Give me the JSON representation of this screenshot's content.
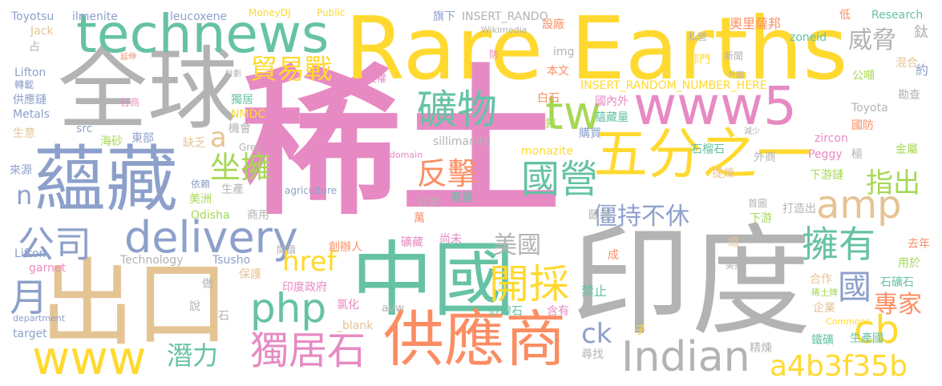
{
  "colors": {
    "pink": "#e78ac3",
    "gray": "#b3b3b3",
    "blue": "#8da0cb",
    "green": "#a6d854",
    "yellow": "#ffd92f",
    "orange": "#fc8d62",
    "tan": "#e5c494",
    "teal": "#66c2a5"
  },
  "words": [
    {
      "t": "稀土",
      "c": "pink"
    },
    {
      "t": "印度",
      "c": "gray"
    },
    {
      "t": "Rare Earths",
      "c": "yellow"
    },
    {
      "t": "全球",
      "c": "gray"
    },
    {
      "t": "中國",
      "c": "teal"
    },
    {
      "t": "出口",
      "c": "tan"
    },
    {
      "t": "蘊藏",
      "c": "blue"
    },
    {
      "t": "technews",
      "c": "teal"
    },
    {
      "t": "www5",
      "c": "pink"
    },
    {
      "t": "五分之一",
      "c": "yellow"
    },
    {
      "t": "供應商",
      "c": "orange"
    },
    {
      "t": "www",
      "c": "yellow"
    },
    {
      "t": "delivery",
      "c": "blue"
    },
    {
      "t": "Indian",
      "c": "gray"
    },
    {
      "t": "tw",
      "c": "green"
    },
    {
      "t": "礦物",
      "c": "teal"
    },
    {
      "t": "php",
      "c": "teal"
    },
    {
      "t": "國營",
      "c": "teal"
    },
    {
      "t": "開採",
      "c": "yellow"
    },
    {
      "t": "公司",
      "c": "blue"
    },
    {
      "t": "amp",
      "c": "tan"
    },
    {
      "t": "擁有",
      "c": "teal"
    },
    {
      "t": "獨居石",
      "c": "pink"
    },
    {
      "t": "cb",
      "c": "yellow"
    },
    {
      "t": "a4b3f35b",
      "c": "yellow"
    },
    {
      "t": "貿易戰",
      "c": "yellow"
    },
    {
      "t": "威脅",
      "c": "gray"
    },
    {
      "t": "坐擁",
      "c": "green"
    },
    {
      "t": "反擊",
      "c": "orange"
    },
    {
      "t": "指出",
      "c": "green"
    },
    {
      "t": "僵持不休",
      "c": "blue"
    },
    {
      "t": "美國",
      "c": "gray"
    },
    {
      "t": "href",
      "c": "yellow"
    },
    {
      "t": "月",
      "c": "blue"
    },
    {
      "t": "國",
      "c": "blue"
    },
    {
      "t": "專家",
      "c": "orange"
    },
    {
      "t": "潛力",
      "c": "teal"
    },
    {
      "t": "ck",
      "c": "blue"
    },
    {
      "t": "a",
      "c": "tan"
    },
    {
      "t": "n",
      "c": "blue"
    },
    {
      "t": "Toyotsu",
      "c": "blue"
    },
    {
      "t": "ilmenite",
      "c": "blue"
    },
    {
      "t": "leucoxene",
      "c": "blue"
    },
    {
      "t": "MoneyDJ",
      "c": "yellow"
    },
    {
      "t": "Public",
      "c": "yellow"
    },
    {
      "t": "旗下",
      "c": "blue"
    },
    {
      "t": "INSERT_RANDO",
      "c": "gray"
    },
    {
      "t": "Research",
      "c": "teal"
    },
    {
      "t": "Jack",
      "c": "tan"
    },
    {
      "t": "Wikimedia",
      "c": "gray"
    },
    {
      "t": "設廠",
      "c": "orange"
    },
    {
      "t": "奧里薩邦",
      "c": "orange"
    },
    {
      "t": "低",
      "c": "orange"
    },
    {
      "t": "zoneid",
      "c": "teal"
    },
    {
      "t": "鈦",
      "c": "gray"
    },
    {
      "t": "占",
      "c": "gray"
    },
    {
      "t": "延伸",
      "c": "orange"
    },
    {
      "t": "img",
      "c": "gray"
    },
    {
      "t": "防",
      "c": "pink"
    },
    {
      "t": "私營",
      "c": "gray"
    },
    {
      "t": "部門",
      "c": "yellow"
    },
    {
      "t": "新聞",
      "c": "gray"
    },
    {
      "t": "混合",
      "c": "tan"
    },
    {
      "t": "約",
      "c": "blue"
    },
    {
      "t": "Lifton",
      "c": "blue"
    },
    {
      "t": "計劃",
      "c": "gray"
    },
    {
      "t": "授權",
      "c": "pink"
    },
    {
      "t": "本文",
      "c": "orange"
    },
    {
      "t": "外國",
      "c": "gray"
    },
    {
      "t": "公噸",
      "c": "green"
    },
    {
      "t": "轉載",
      "c": "blue"
    },
    {
      "t": "INSERT_RANDOM_NUMBER_HERE",
      "c": "yellow"
    },
    {
      "t": "勘查",
      "c": "gray"
    },
    {
      "t": "供應鏈",
      "c": "blue"
    },
    {
      "t": "獨居",
      "c": "teal"
    },
    {
      "t": "白石",
      "c": "orange"
    },
    {
      "t": "國內外",
      "c": "pink"
    },
    {
      "t": "Toyota",
      "c": "gray"
    },
    {
      "t": "日商",
      "c": "pink"
    },
    {
      "t": "Metals",
      "c": "blue"
    },
    {
      "t": "NMDC",
      "c": "yellow"
    },
    {
      "t": "鍺",
      "c": "green"
    },
    {
      "t": "蘊藏量",
      "c": "teal"
    },
    {
      "t": "國防",
      "c": "orange"
    },
    {
      "t": "生意",
      "c": "tan"
    },
    {
      "t": "src",
      "c": "blue"
    },
    {
      "t": "機會",
      "c": "gray"
    },
    {
      "t": "購買",
      "c": "blue"
    },
    {
      "t": "減少",
      "c": "gray"
    },
    {
      "t": "海砂",
      "c": "green"
    },
    {
      "t": "東部",
      "c": "blue"
    },
    {
      "t": "缺乏",
      "c": "tan"
    },
    {
      "t": "sillimanite",
      "c": "gray"
    },
    {
      "t": "zircon",
      "c": "pink"
    },
    {
      "t": "外商",
      "c": "gray"
    },
    {
      "t": "來源",
      "c": "blue"
    },
    {
      "t": "Greb",
      "c": "gray"
    },
    {
      "t": "monazite",
      "c": "yellow"
    },
    {
      "t": "石榴石",
      "c": "teal"
    },
    {
      "t": "Peggy",
      "c": "pink"
    },
    {
      "t": "極",
      "c": "gray"
    },
    {
      "t": "金屬",
      "c": "green"
    },
    {
      "t": "domain",
      "c": "pink"
    },
    {
      "t": "提煉",
      "c": "tan"
    },
    {
      "t": "依賴",
      "c": "blue"
    },
    {
      "t": "生產",
      "c": "gray"
    },
    {
      "t": "下游鏈",
      "c": "green"
    },
    {
      "t": "美洲",
      "c": "green"
    },
    {
      "t": "agriculture",
      "c": "blue"
    },
    {
      "t": "日本",
      "c": "gray"
    },
    {
      "t": "產量",
      "c": "teal"
    },
    {
      "t": "首圖",
      "c": "gray"
    },
    {
      "t": "Odisha",
      "c": "green"
    },
    {
      "t": "商用",
      "c": "gray"
    },
    {
      "t": "萬",
      "c": "orange"
    },
    {
      "t": "歐洲",
      "c": "gray"
    },
    {
      "t": "下游",
      "c": "green"
    },
    {
      "t": "打造出",
      "c": "gray"
    },
    {
      "t": "去年",
      "c": "orange"
    },
    {
      "t": "Lifton",
      "c": "blue"
    },
    {
      "t": "閱讀",
      "c": "gray"
    },
    {
      "t": "創辦人",
      "c": "orange"
    },
    {
      "t": "礦藏",
      "c": "pink"
    },
    {
      "t": "尚未",
      "c": "pink"
    },
    {
      "t": "總",
      "c": "tan"
    },
    {
      "t": "garnet",
      "c": "pink"
    },
    {
      "t": "Technology",
      "c": "gray"
    },
    {
      "t": "Tsusho",
      "c": "blue"
    },
    {
      "t": "成",
      "c": "orange"
    },
    {
      "t": "美擬",
      "c": "gray"
    },
    {
      "t": "用於",
      "c": "green"
    },
    {
      "t": "保護",
      "c": "tan"
    },
    {
      "t": "印度政府",
      "c": "pink"
    },
    {
      "t": "做",
      "c": "gray"
    },
    {
      "t": "合作",
      "c": "tan"
    },
    {
      "t": "石礦石",
      "c": "teal"
    },
    {
      "t": "稀土牌",
      "c": "green"
    },
    {
      "t": "禁止",
      "c": "teal"
    },
    {
      "t": "氯化",
      "c": "pink"
    },
    {
      "t": "矽線石",
      "c": "teal"
    },
    {
      "t": "含有",
      "c": "pink"
    },
    {
      "t": "企業",
      "c": "tan"
    },
    {
      "t": "說",
      "c": "gray"
    },
    {
      "t": "avw",
      "c": "gray"
    },
    {
      "t": "department",
      "c": "blue"
    },
    {
      "t": "Commons",
      "c": "yellow"
    },
    {
      "t": "石",
      "c": "gray"
    },
    {
      "t": "_blank",
      "c": "tan"
    },
    {
      "t": "target",
      "c": "blue"
    },
    {
      "t": "精煉",
      "c": "gray"
    },
    {
      "t": "子",
      "c": "yellow"
    },
    {
      "t": "鐵礦",
      "c": "teal"
    },
    {
      "t": "生產國",
      "c": "teal"
    },
    {
      "t": "尋找",
      "c": "gray"
    }
  ]
}
